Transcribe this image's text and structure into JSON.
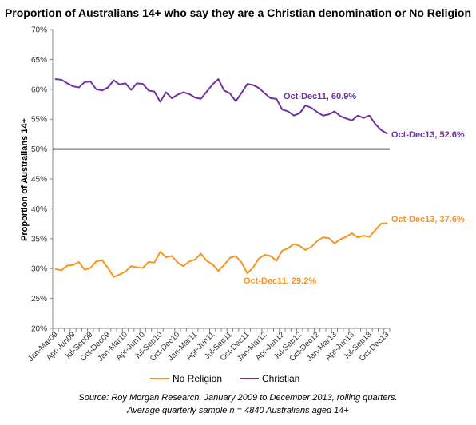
{
  "chart_data": {
    "type": "line",
    "title": "Proportion of Australians 14+ who say they are a Christian denomination or No Religion",
    "ylabel": "Proportion of Australians 14+",
    "xlabel": "",
    "ylim": [
      20,
      70
    ],
    "y_ticks": [
      "20%",
      "25%",
      "30%",
      "35%",
      "40%",
      "45%",
      "50%",
      "55%",
      "60%",
      "65%",
      "70%"
    ],
    "y_tick_values": [
      20,
      25,
      30,
      35,
      40,
      45,
      50,
      55,
      60,
      65,
      70
    ],
    "x_tick_labels": [
      "Jan-Mar09",
      "Apr-Jun09",
      "Jul-Sep09",
      "Oct-Dec09",
      "Jan-Mar10",
      "Apr-Jun10",
      "Jul-Sep10",
      "Oct-Dec10",
      "Jan-Mar11",
      "Apr-Jun11",
      "Jul-Sep11",
      "Oct-Dec11",
      "Jan-Mar12",
      "Apr-Jun12",
      "Jul-Sep12",
      "Oct-Dec12",
      "Jan-Mar13",
      "Apr-Jun13",
      "Jul-Sep13",
      "Oct-Dec13"
    ],
    "grid": false,
    "legend": "bottom",
    "reference_line": 50,
    "series": [
      {
        "name": "No Religion",
        "color": "#F7941D",
        "values": [
          29.9,
          29.7,
          30.5,
          30.6,
          31.1,
          29.8,
          30.1,
          31.2,
          31.4,
          30.1,
          28.6,
          29.0,
          29.5,
          30.4,
          30.2,
          30.1,
          31.1,
          31.0,
          32.8,
          31.9,
          32.1,
          31.0,
          30.4,
          31.2,
          31.5,
          32.5,
          31.3,
          30.7,
          29.6,
          30.6,
          31.8,
          32.1,
          31.0,
          29.2,
          30.2,
          31.7,
          32.3,
          32.1,
          31.3,
          33.0,
          33.4,
          34.1,
          33.8,
          33.1,
          33.6,
          34.6,
          35.2,
          35.1,
          34.2,
          34.9,
          35.3,
          35.9,
          35.2,
          35.5,
          35.3,
          36.4,
          37.5,
          37.6
        ]
      },
      {
        "name": "Christian",
        "color": "#7030A0",
        "values": [
          61.7,
          61.6,
          61.0,
          60.5,
          60.3,
          61.2,
          61.3,
          60.0,
          59.8,
          60.3,
          61.5,
          60.8,
          61.0,
          59.9,
          61.0,
          60.9,
          59.8,
          59.6,
          57.9,
          59.5,
          58.5,
          59.1,
          59.5,
          59.2,
          58.6,
          58.4,
          59.6,
          60.8,
          61.7,
          59.8,
          59.3,
          58.0,
          59.4,
          60.9,
          60.7,
          60.2,
          59.3,
          58.5,
          58.4,
          56.6,
          56.3,
          55.6,
          56.0,
          57.3,
          56.9,
          56.2,
          55.6,
          55.8,
          56.3,
          55.5,
          55.1,
          54.8,
          55.6,
          55.2,
          55.6,
          54.2,
          53.2,
          52.6
        ]
      }
    ],
    "annotations": [
      {
        "text": "Oct-Dec11, 60.9%",
        "series": "Christian"
      },
      {
        "text": "Oct-Dec13, 52.6%",
        "series": "Christian"
      },
      {
        "text": "Oct-Dec13, 37.6%",
        "series": "No Religion"
      },
      {
        "text": "Oct-Dec11, 29.2%",
        "series": "No Religion"
      }
    ]
  },
  "source_line1": "Source: Roy Morgan Research, January 2009 to December 2013, rolling quarters.",
  "source_line2": "Average quarterly sample n = 4840 Australians aged 14+"
}
